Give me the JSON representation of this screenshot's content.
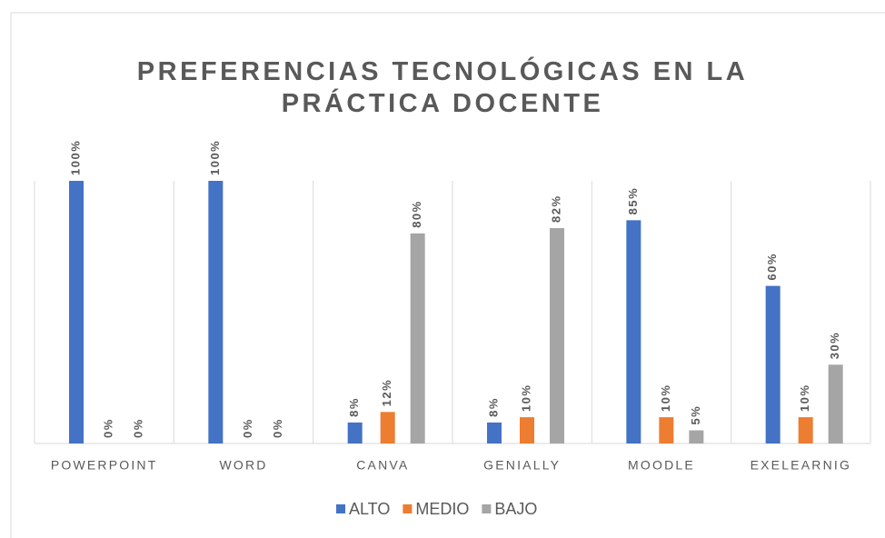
{
  "chart_data": {
    "type": "bar",
    "title": "PREFERENCIAS TECNOLÓGICAS EN LA PRÁCTICA DOCENTE",
    "categories": [
      "POWERPOINT",
      "WORD",
      "CANVA",
      "GENIALLY",
      "MOODLE",
      "EXELEARNIG"
    ],
    "series": [
      {
        "name": "ALTO",
        "color": "#4472c4",
        "values": [
          100,
          100,
          8,
          8,
          85,
          60
        ],
        "value_labels": [
          "100%",
          "100%",
          "8%",
          "8%",
          "85%",
          "60%"
        ]
      },
      {
        "name": "MEDIO",
        "color": "#ed7d31",
        "values": [
          0,
          0,
          12,
          10,
          10,
          10
        ],
        "value_labels": [
          "0%",
          "0%",
          "12%",
          "10%",
          "10%",
          "10%"
        ]
      },
      {
        "name": "BAJO",
        "color": "#a5a5a5",
        "values": [
          0,
          0,
          80,
          82,
          5,
          30
        ],
        "value_labels": [
          "0%",
          "0%",
          "80%",
          "82%",
          "5%",
          "30%"
        ]
      }
    ],
    "ylim": [
      0,
      100
    ],
    "legend": "bottom"
  }
}
